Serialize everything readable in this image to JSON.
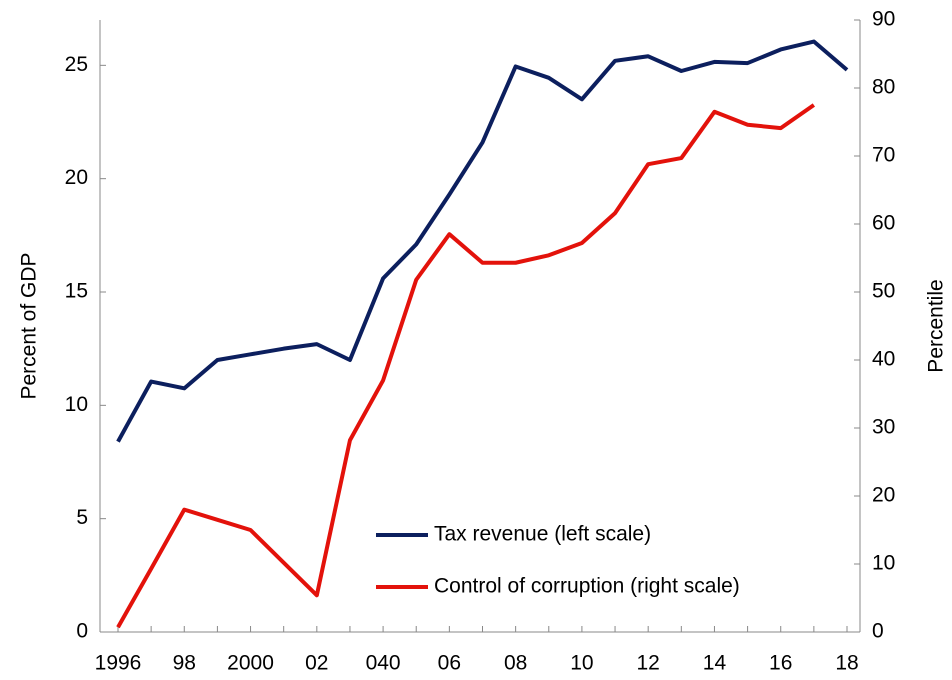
{
  "chart_data": {
    "type": "line",
    "categories": [
      "1996",
      null,
      "98",
      null,
      "2000",
      null,
      "02",
      null,
      "040",
      null,
      "06",
      null,
      "08",
      null,
      "10",
      null,
      "12",
      null,
      "14",
      null,
      "16",
      null,
      "18"
    ],
    "series": [
      {
        "name": "Tax revenue (left scale)",
        "color": "#0c1f5e",
        "axis": "y",
        "values": [
          8.4,
          11.05,
          10.75,
          12.0,
          12.25,
          12.5,
          12.7,
          12.0,
          15.6,
          17.1,
          19.3,
          21.6,
          24.95,
          24.45,
          23.5,
          25.2,
          25.4,
          24.75,
          25.15,
          25.1,
          25.7,
          26.05,
          24.8
        ]
      },
      {
        "name": "Control of corruption (right scale)",
        "color": "#e3120b",
        "axis": "y2",
        "values": [
          0.7,
          9.3,
          18,
          16.5,
          15,
          10.2,
          5.4,
          28.2,
          37,
          51.8,
          58.5,
          54.3,
          54.3,
          55.4,
          57.2,
          61.6,
          68.8,
          69.7,
          76.5,
          74.6,
          74.1,
          77.5,
          null
        ]
      }
    ],
    "y_label": "Percent of GDP",
    "y2_label": "Percentile",
    "ylim": [
      0,
      27
    ],
    "yticks": [
      0,
      5,
      10,
      15,
      20,
      25
    ],
    "y2lim": [
      0,
      90
    ],
    "y2ticks": [
      0,
      10,
      20,
      30,
      40,
      50,
      60,
      70,
      80,
      90
    ],
    "legend": "bottom"
  }
}
